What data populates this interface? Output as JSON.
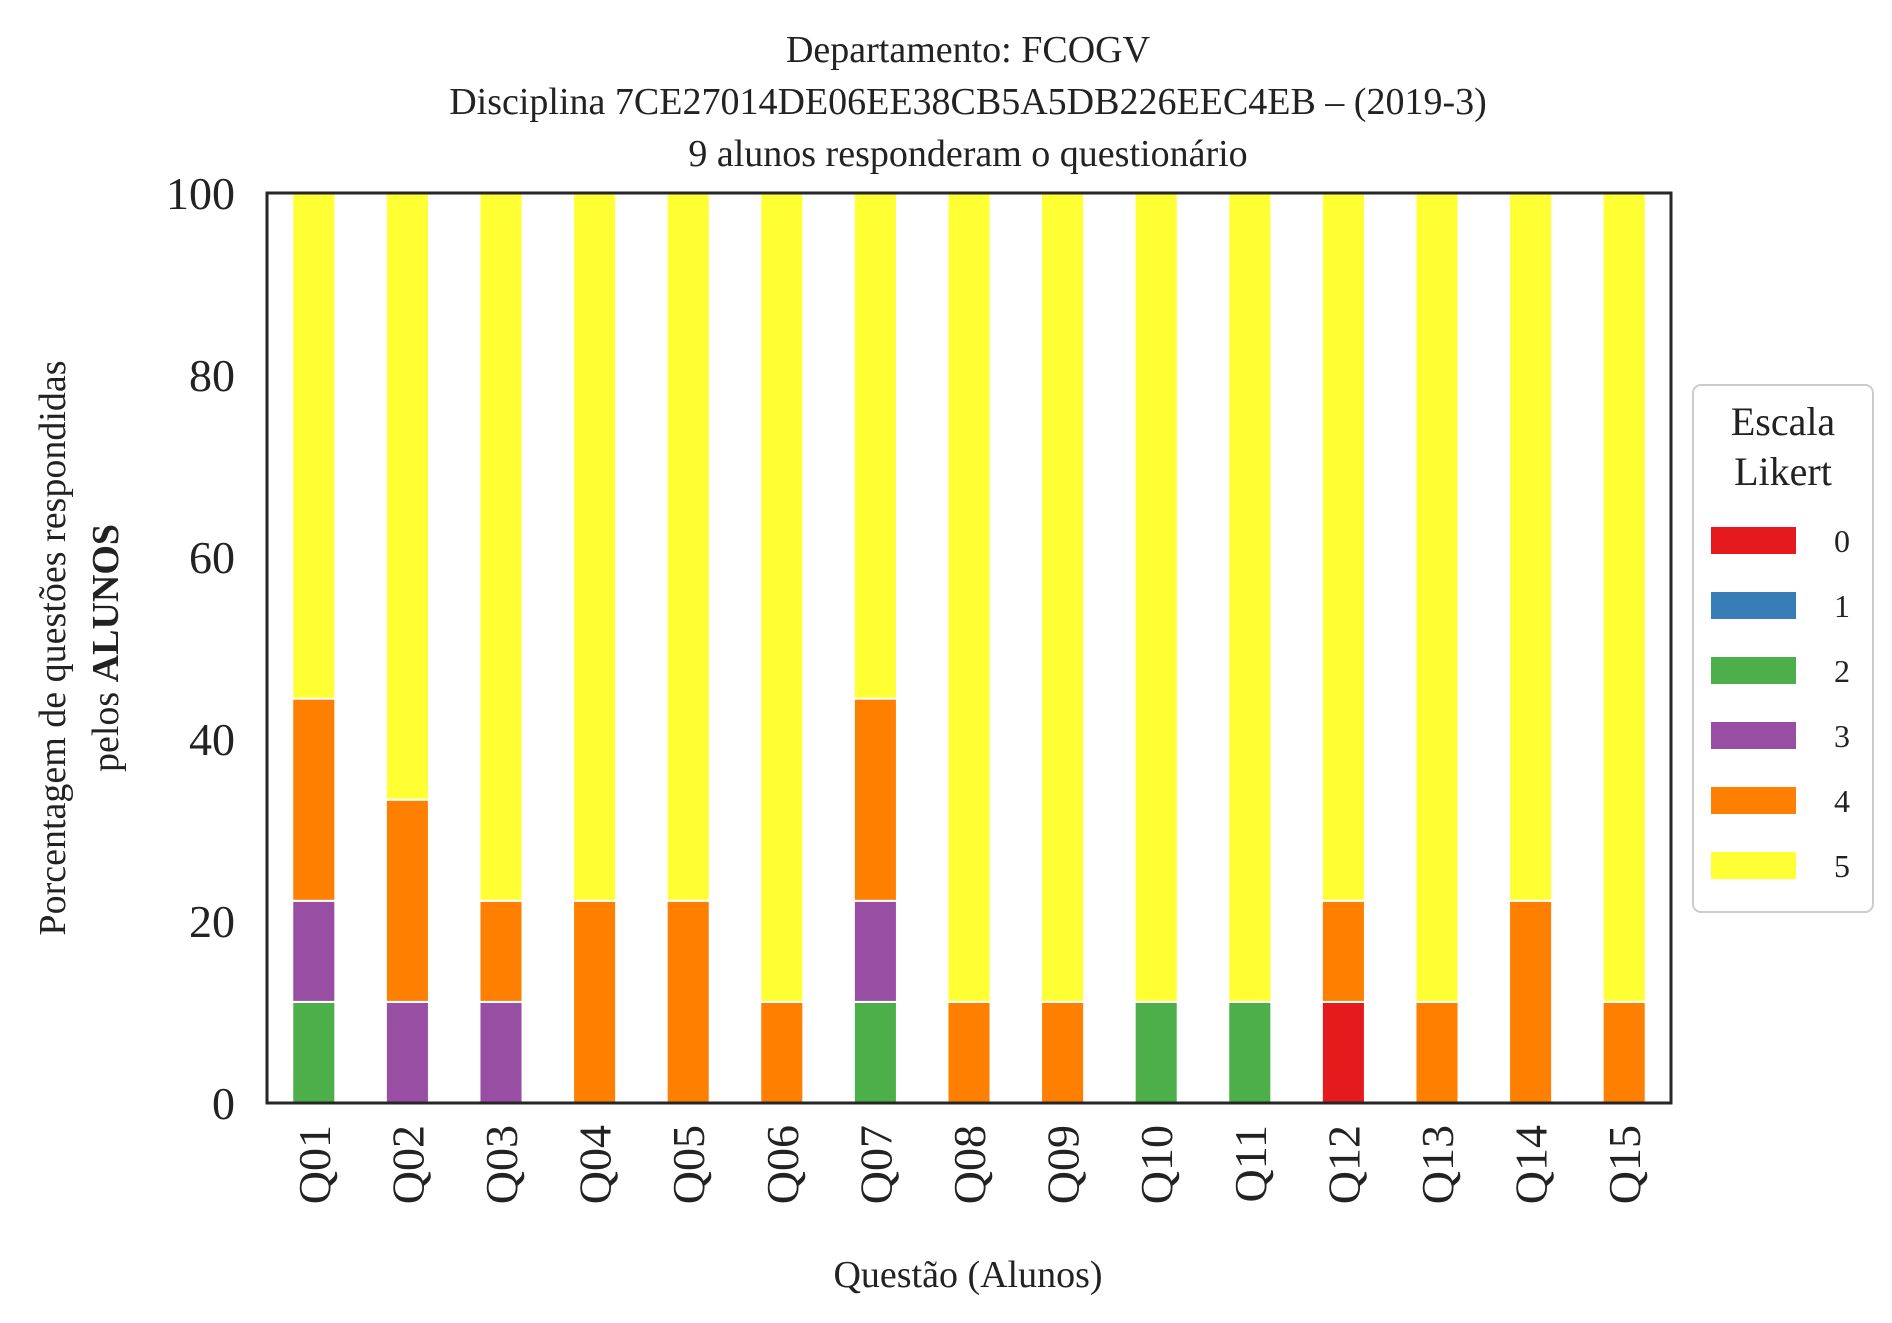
{
  "chart_data": {
    "type": "bar",
    "stacked": true,
    "title": [
      "Departamento: FCOGV",
      "Disciplina 7CE27014DE06EE38CB5A5DB226EEC4EB – (2019-3)",
      "9 alunos responderam o questionário"
    ],
    "xlabel": "Questão (Alunos)",
    "ylabel": {
      "line1": "Porcentagem de questões respondidas",
      "line2_prefix": "pelos ",
      "line2_bold": "ALUNOS"
    },
    "ylim": [
      0,
      100
    ],
    "yticks": [
      "0",
      "20",
      "40",
      "60",
      "80",
      "100"
    ],
    "grid": false,
    "legend": {
      "title": [
        "Escala",
        "Likert"
      ],
      "placement": "right"
    },
    "categories": [
      "Q01",
      "Q02",
      "Q03",
      "Q04",
      "Q05",
      "Q06",
      "Q07",
      "Q08",
      "Q09",
      "Q10",
      "Q11",
      "Q12",
      "Q13",
      "Q14",
      "Q15"
    ],
    "series": [
      {
        "name": "0",
        "color": "#e41a1c",
        "values": [
          0,
          0,
          0,
          0,
          0,
          0,
          0,
          0,
          0,
          0,
          0,
          11.11,
          0,
          0,
          0
        ]
      },
      {
        "name": "1",
        "color": "#377eb8",
        "values": [
          0,
          0,
          0,
          0,
          0,
          0,
          0,
          0,
          0,
          0,
          0,
          0,
          0,
          0,
          0
        ]
      },
      {
        "name": "2",
        "color": "#4daf4a",
        "values": [
          11.11,
          0,
          0,
          0,
          0,
          0,
          11.11,
          0,
          0,
          11.11,
          11.11,
          0,
          0,
          0,
          0
        ]
      },
      {
        "name": "3",
        "color": "#984ea3",
        "values": [
          11.11,
          11.11,
          11.11,
          0,
          0,
          0,
          11.11,
          0,
          0,
          0,
          0,
          0,
          0,
          0,
          0
        ]
      },
      {
        "name": "4",
        "color": "#ff7f00",
        "values": [
          22.22,
          22.22,
          11.11,
          22.22,
          22.22,
          11.11,
          22.22,
          11.11,
          11.11,
          0,
          0,
          11.11,
          11.11,
          22.22,
          11.11
        ]
      },
      {
        "name": "5",
        "color": "#ffff33",
        "values": [
          55.56,
          66.67,
          77.78,
          77.78,
          77.78,
          88.89,
          55.56,
          88.89,
          88.89,
          88.89,
          88.89,
          77.78,
          88.89,
          77.78,
          88.89
        ]
      }
    ]
  }
}
